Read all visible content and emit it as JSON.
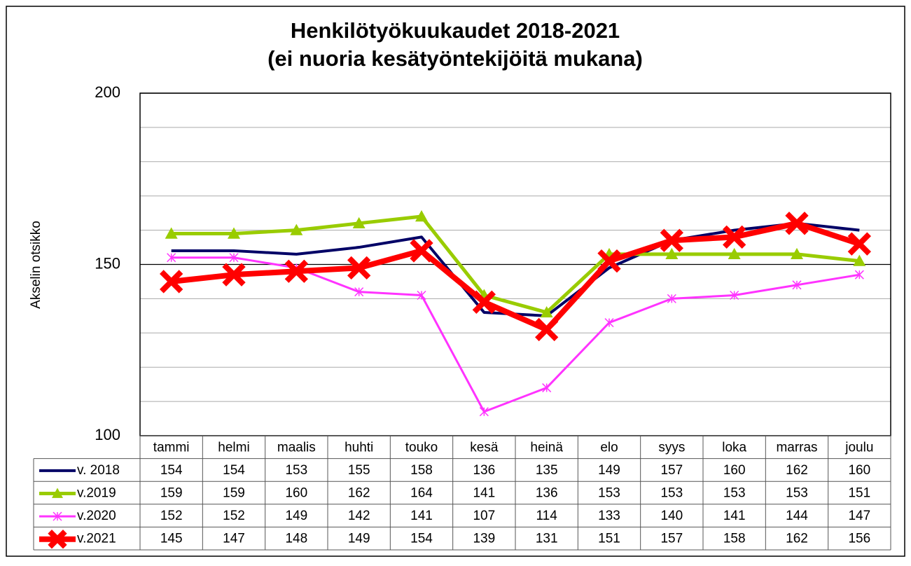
{
  "chart_data": {
    "type": "line",
    "title": "Henkilötyökuukaudet 2018-2021",
    "subtitle": "(ei nuoria kesätyöntekijöitä mukana)",
    "y_label": "Akselin otsikko",
    "categories": [
      "tammi",
      "helmi",
      "maalis",
      "huhti",
      "touko",
      "kesä",
      "heinä",
      "elo",
      "syys",
      "loka",
      "marras",
      "joulu"
    ],
    "series": [
      {
        "name": "v. 2018",
        "color": "#000066",
        "marker": "none",
        "width": 4,
        "values": [
          154,
          154,
          153,
          155,
          158,
          136,
          135,
          149,
          157,
          160,
          162,
          160
        ]
      },
      {
        "name": "v.2019",
        "color": "#99cc00",
        "marker": "triangle",
        "width": 5,
        "values": [
          159,
          159,
          160,
          162,
          164,
          141,
          136,
          153,
          153,
          153,
          153,
          151
        ]
      },
      {
        "name": "v.2020",
        "color": "#ff33ff",
        "marker": "asterisk",
        "width": 3,
        "values": [
          152,
          152,
          149,
          142,
          141,
          107,
          114,
          133,
          140,
          141,
          144,
          147
        ]
      },
      {
        "name": "v.2021",
        "color": "#ff0000",
        "marker": "x",
        "width": 8,
        "values": [
          145,
          147,
          148,
          149,
          154,
          139,
          131,
          151,
          157,
          158,
          162,
          156
        ]
      }
    ],
    "ylim": [
      100,
      200
    ],
    "yticks": [
      100,
      150,
      200
    ],
    "minor_gridlines": [
      110,
      120,
      130,
      140,
      160,
      170,
      180,
      190
    ],
    "grid": true,
    "data_table": true
  }
}
